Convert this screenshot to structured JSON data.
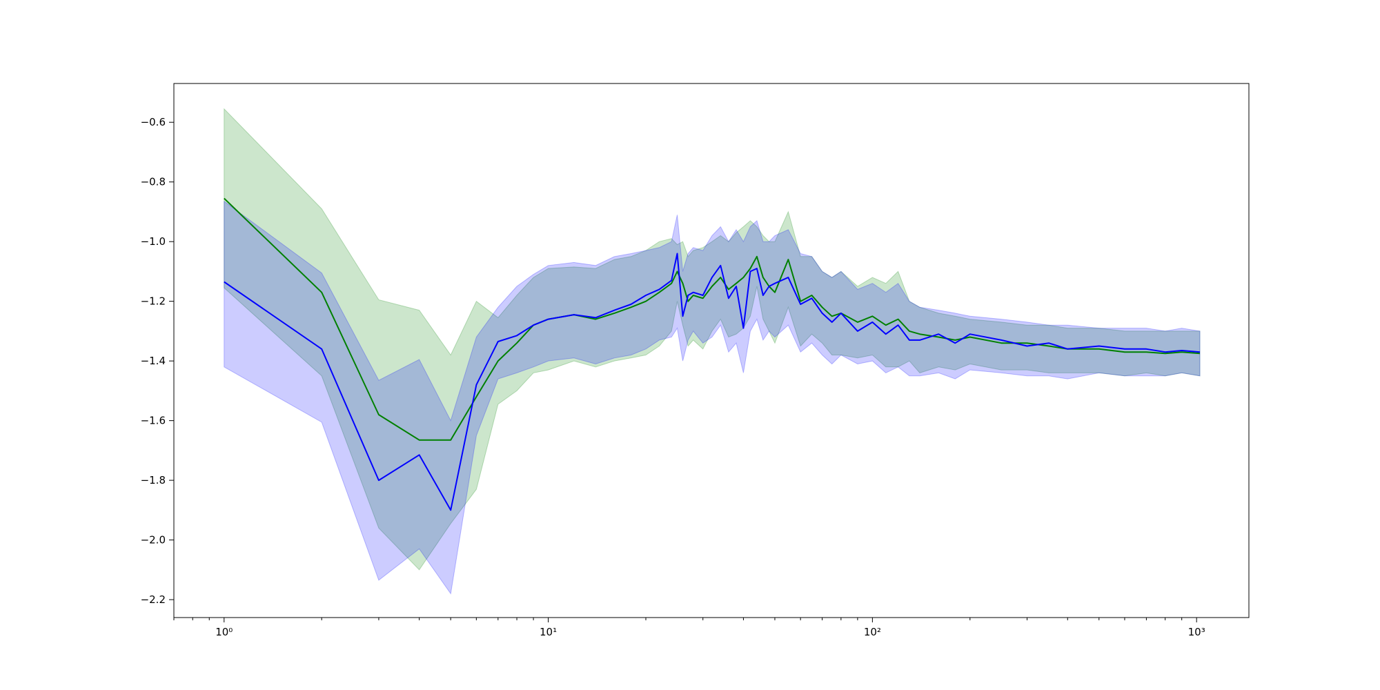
{
  "chart_data": {
    "type": "line",
    "title": "",
    "xlabel": "",
    "ylabel": "",
    "x_scale": "log",
    "xlim": [
      0.7,
      1450
    ],
    "ylim": [
      -2.26,
      -0.47
    ],
    "grid": false,
    "x_ticks": [
      {
        "value": 1,
        "label": "10⁰"
      },
      {
        "value": 10,
        "label": "10¹"
      },
      {
        "value": 100,
        "label": "10²"
      },
      {
        "value": 1000,
        "label": "10³"
      }
    ],
    "y_ticks": [
      {
        "value": -0.6,
        "label": "−0.6"
      },
      {
        "value": -0.8,
        "label": "−0.8"
      },
      {
        "value": -1.0,
        "label": "−1.0"
      },
      {
        "value": -1.2,
        "label": "−1.2"
      },
      {
        "value": -1.4,
        "label": "−1.4"
      },
      {
        "value": -1.6,
        "label": "−1.6"
      },
      {
        "value": -1.8,
        "label": "−1.8"
      },
      {
        "value": -2.0,
        "label": "−2.0"
      },
      {
        "value": -2.2,
        "label": "−2.2"
      }
    ],
    "series": [
      {
        "color": "#008000",
        "band_color": "#008000",
        "band_opacity": 0.2,
        "x": [
          1,
          2,
          3,
          4,
          5,
          6,
          7,
          8,
          9,
          10,
          12,
          14,
          16,
          18,
          20,
          22,
          24,
          25,
          26,
          27,
          28,
          30,
          32,
          34,
          36,
          38,
          40,
          42,
          44,
          46,
          48,
          50,
          55,
          60,
          65,
          70,
          75,
          80,
          90,
          100,
          110,
          120,
          130,
          140,
          160,
          180,
          200,
          250,
          300,
          350,
          400,
          500,
          600,
          700,
          800,
          900,
          1024
        ],
        "y": [
          -0.855,
          -1.17,
          -1.58,
          -1.665,
          -1.665,
          -1.52,
          -1.4,
          -1.34,
          -1.28,
          -1.26,
          -1.245,
          -1.26,
          -1.24,
          -1.22,
          -1.2,
          -1.17,
          -1.14,
          -1.1,
          -1.14,
          -1.2,
          -1.18,
          -1.19,
          -1.15,
          -1.12,
          -1.16,
          -1.14,
          -1.12,
          -1.09,
          -1.05,
          -1.12,
          -1.15,
          -1.17,
          -1.06,
          -1.2,
          -1.18,
          -1.22,
          -1.25,
          -1.24,
          -1.27,
          -1.25,
          -1.28,
          -1.26,
          -1.3,
          -1.31,
          -1.32,
          -1.33,
          -1.32,
          -1.34,
          -1.34,
          -1.35,
          -1.36,
          -1.36,
          -1.37,
          -1.37,
          -1.375,
          -1.37,
          -1.375
        ],
        "upper": [
          -0.555,
          -0.89,
          -1.195,
          -1.23,
          -1.38,
          -1.2,
          -1.255,
          -1.18,
          -1.12,
          -1.09,
          -1.085,
          -1.09,
          -1.06,
          -1.05,
          -1.03,
          -1.0,
          -0.99,
          -1.01,
          -1.0,
          -1.05,
          -1.03,
          -1.02,
          -1.0,
          -0.98,
          -1.0,
          -0.97,
          -0.95,
          -0.93,
          -0.95,
          -0.98,
          -1.0,
          -1.0,
          -0.9,
          -1.05,
          -1.05,
          -1.1,
          -1.12,
          -1.1,
          -1.15,
          -1.12,
          -1.14,
          -1.1,
          -1.2,
          -1.22,
          -1.24,
          -1.25,
          -1.26,
          -1.27,
          -1.28,
          -1.28,
          -1.29,
          -1.29,
          -1.3,
          -1.3,
          -1.3,
          -1.3,
          -1.3
        ],
        "lower": [
          -1.155,
          -1.45,
          -1.96,
          -2.1,
          -1.945,
          -1.83,
          -1.545,
          -1.5,
          -1.44,
          -1.43,
          -1.4,
          -1.42,
          -1.4,
          -1.39,
          -1.38,
          -1.35,
          -1.3,
          -1.2,
          -1.28,
          -1.35,
          -1.33,
          -1.36,
          -1.3,
          -1.26,
          -1.32,
          -1.31,
          -1.29,
          -1.25,
          -1.15,
          -1.26,
          -1.3,
          -1.34,
          -1.22,
          -1.35,
          -1.31,
          -1.34,
          -1.38,
          -1.38,
          -1.39,
          -1.38,
          -1.42,
          -1.42,
          -1.4,
          -1.44,
          -1.42,
          -1.43,
          -1.41,
          -1.43,
          -1.43,
          -1.44,
          -1.44,
          -1.44,
          -1.45,
          -1.44,
          -1.45,
          -1.44,
          -1.45
        ]
      },
      {
        "color": "#0000ff",
        "band_color": "#0000ff",
        "band_opacity": 0.2,
        "x": [
          1,
          2,
          3,
          4,
          5,
          6,
          7,
          8,
          9,
          10,
          12,
          14,
          16,
          18,
          20,
          22,
          24,
          25,
          26,
          27,
          28,
          30,
          32,
          34,
          36,
          38,
          40,
          42,
          44,
          46,
          48,
          50,
          55,
          60,
          65,
          70,
          75,
          80,
          90,
          100,
          110,
          120,
          130,
          140,
          160,
          180,
          200,
          250,
          300,
          350,
          400,
          500,
          600,
          700,
          800,
          900,
          1024
        ],
        "y": [
          -1.135,
          -1.36,
          -1.8,
          -1.715,
          -1.9,
          -1.48,
          -1.335,
          -1.315,
          -1.28,
          -1.26,
          -1.245,
          -1.255,
          -1.23,
          -1.21,
          -1.18,
          -1.16,
          -1.13,
          -1.04,
          -1.25,
          -1.18,
          -1.17,
          -1.18,
          -1.12,
          -1.08,
          -1.19,
          -1.15,
          -1.29,
          -1.1,
          -1.09,
          -1.18,
          -1.15,
          -1.14,
          -1.12,
          -1.21,
          -1.19,
          -1.24,
          -1.27,
          -1.24,
          -1.3,
          -1.27,
          -1.31,
          -1.28,
          -1.33,
          -1.33,
          -1.31,
          -1.34,
          -1.31,
          -1.33,
          -1.35,
          -1.34,
          -1.36,
          -1.35,
          -1.36,
          -1.36,
          -1.37,
          -1.365,
          -1.37
        ],
        "upper": [
          -0.865,
          -1.105,
          -1.465,
          -1.395,
          -1.6,
          -1.32,
          -1.22,
          -1.15,
          -1.11,
          -1.08,
          -1.07,
          -1.08,
          -1.05,
          -1.04,
          -1.03,
          -1.02,
          -1.0,
          -0.91,
          -1.1,
          -1.04,
          -1.02,
          -1.03,
          -0.98,
          -0.95,
          -1.0,
          -0.96,
          -1.0,
          -0.95,
          -0.93,
          -1.0,
          -1.0,
          -0.98,
          -0.96,
          -1.04,
          -1.05,
          -1.1,
          -1.12,
          -1.1,
          -1.16,
          -1.14,
          -1.17,
          -1.14,
          -1.2,
          -1.22,
          -1.23,
          -1.24,
          -1.25,
          -1.26,
          -1.27,
          -1.28,
          -1.28,
          -1.29,
          -1.29,
          -1.29,
          -1.3,
          -1.29,
          -1.3
        ],
        "lower": [
          -1.42,
          -1.605,
          -2.135,
          -2.03,
          -2.18,
          -1.65,
          -1.46,
          -1.44,
          -1.42,
          -1.4,
          -1.39,
          -1.41,
          -1.39,
          -1.38,
          -1.36,
          -1.33,
          -1.32,
          -1.29,
          -1.4,
          -1.33,
          -1.3,
          -1.34,
          -1.32,
          -1.28,
          -1.37,
          -1.34,
          -1.44,
          -1.3,
          -1.26,
          -1.33,
          -1.3,
          -1.32,
          -1.28,
          -1.37,
          -1.34,
          -1.38,
          -1.41,
          -1.38,
          -1.41,
          -1.4,
          -1.44,
          -1.42,
          -1.45,
          -1.45,
          -1.44,
          -1.46,
          -1.43,
          -1.44,
          -1.45,
          -1.45,
          -1.46,
          -1.44,
          -1.45,
          -1.45,
          -1.45,
          -1.44,
          -1.45
        ]
      }
    ]
  }
}
